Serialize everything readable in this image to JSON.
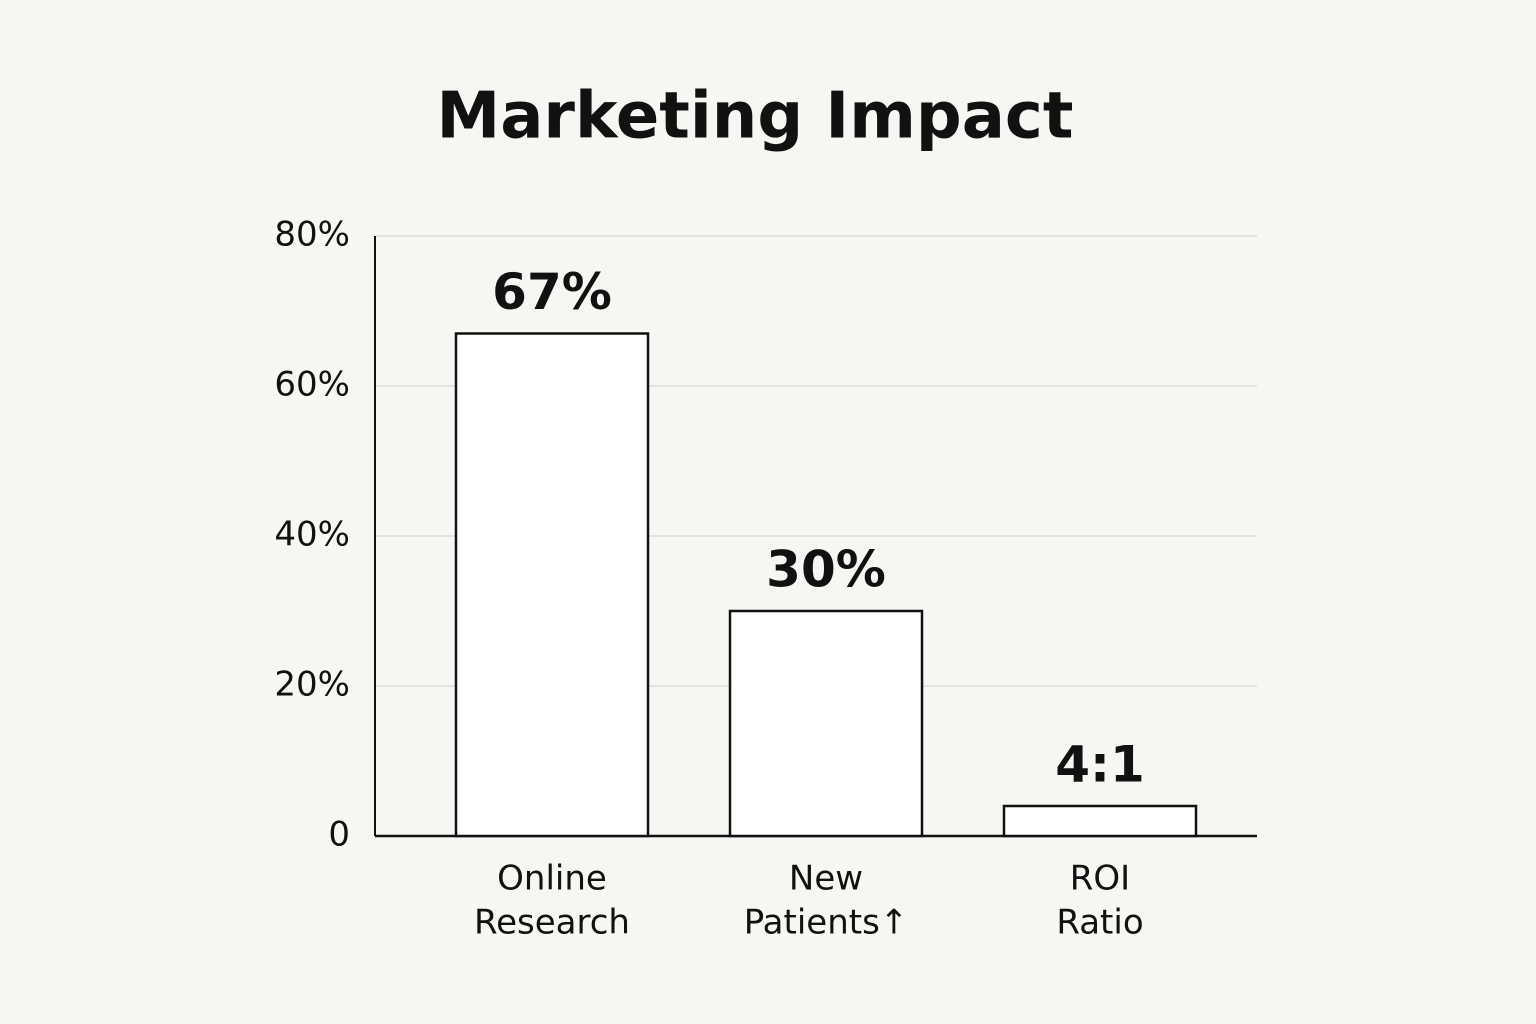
{
  "chart_data": {
    "type": "bar",
    "title": "Marketing Impact",
    "categories": [
      [
        "Online",
        "Research"
      ],
      [
        "New",
        "Patients↑"
      ],
      [
        "ROI",
        "Ratio"
      ]
    ],
    "values": [
      67,
      30,
      4
    ],
    "value_labels": [
      "67%",
      "30%",
      "4:1"
    ],
    "color": "#ffffff",
    "ylim": [
      0,
      80
    ],
    "yticks": [
      {
        "value": 0,
        "label": "0"
      },
      {
        "value": 20,
        "label": "20%"
      },
      {
        "value": 40,
        "label": "40%"
      },
      {
        "value": 60,
        "label": "60%"
      },
      {
        "value": 80,
        "label": "80%"
      }
    ],
    "grid": true
  }
}
